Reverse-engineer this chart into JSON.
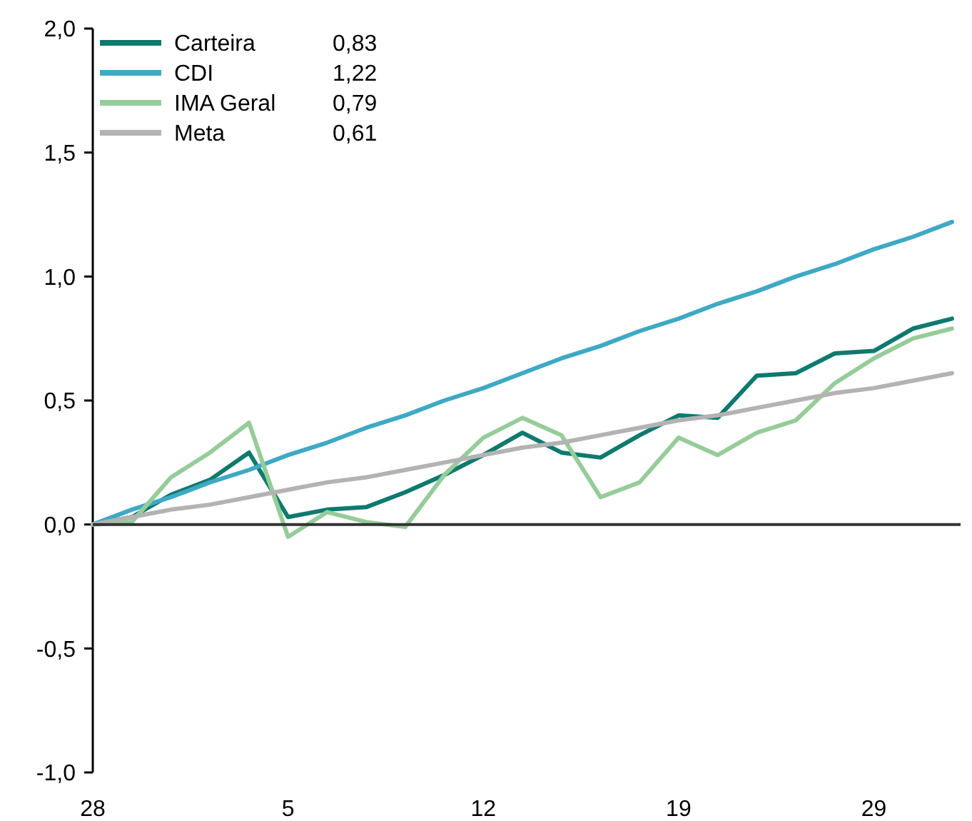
{
  "chart_data": {
    "type": "line",
    "categories": [
      "28",
      null,
      null,
      null,
      null,
      "5",
      null,
      null,
      null,
      null,
      "12",
      null,
      null,
      null,
      null,
      "19",
      null,
      null,
      null,
      null,
      "29",
      null,
      null
    ],
    "series": [
      {
        "name": "Carteira",
        "color": "#0e7a6e",
        "values": [
          0,
          0.03,
          0.12,
          0.18,
          0.29,
          0.03,
          0.06,
          0.07,
          0.13,
          0.2,
          0.28,
          0.37,
          0.29,
          0.27,
          0.36,
          0.44,
          0.43,
          0.6,
          0.61,
          0.69,
          0.7,
          0.79,
          0.83
        ]
      },
      {
        "name": "CDI",
        "color": "#3fa9c4",
        "values": [
          0,
          0.06,
          0.11,
          0.17,
          0.22,
          0.28,
          0.33,
          0.39,
          0.44,
          0.5,
          0.55,
          0.61,
          0.67,
          0.72,
          0.78,
          0.83,
          0.89,
          0.94,
          1.0,
          1.05,
          1.11,
          1.16,
          1.22
        ]
      },
      {
        "name": "IMA Geral",
        "color": "#96cc9a",
        "values": [
          0,
          0.01,
          0.19,
          0.29,
          0.41,
          -0.05,
          0.05,
          0.01,
          -0.01,
          0.2,
          0.35,
          0.43,
          0.36,
          0.11,
          0.17,
          0.35,
          0.28,
          0.37,
          0.42,
          0.57,
          0.67,
          0.75,
          0.79
        ]
      },
      {
        "name": "Meta",
        "color": "#b3b3b3",
        "values": [
          0,
          0.03,
          0.06,
          0.08,
          0.11,
          0.14,
          0.17,
          0.19,
          0.22,
          0.25,
          0.28,
          0.31,
          0.33,
          0.36,
          0.39,
          0.42,
          0.44,
          0.47,
          0.5,
          0.53,
          0.55,
          0.58,
          0.61
        ]
      }
    ],
    "annotations": [
      "0,83",
      "1,22",
      "0,79",
      "0,61"
    ],
    "ylim": [
      -1,
      2
    ],
    "yticks": [
      {
        "value": -1,
        "label": "-1,0"
      },
      {
        "value": -0.5,
        "label": "-0,5"
      },
      {
        "value": 0,
        "label": "0,0"
      },
      {
        "value": 0.5,
        "label": "0,5"
      },
      {
        "value": 1,
        "label": "1,0"
      },
      {
        "value": 1.5,
        "label": "1,5"
      },
      {
        "value": 2,
        "label": "2,0"
      }
    ],
    "ref_lines": [
      {
        "axis": "y",
        "value": 0,
        "color": "#333333"
      }
    ],
    "legend": "top left",
    "marker": "none",
    "line_style": "solid"
  }
}
